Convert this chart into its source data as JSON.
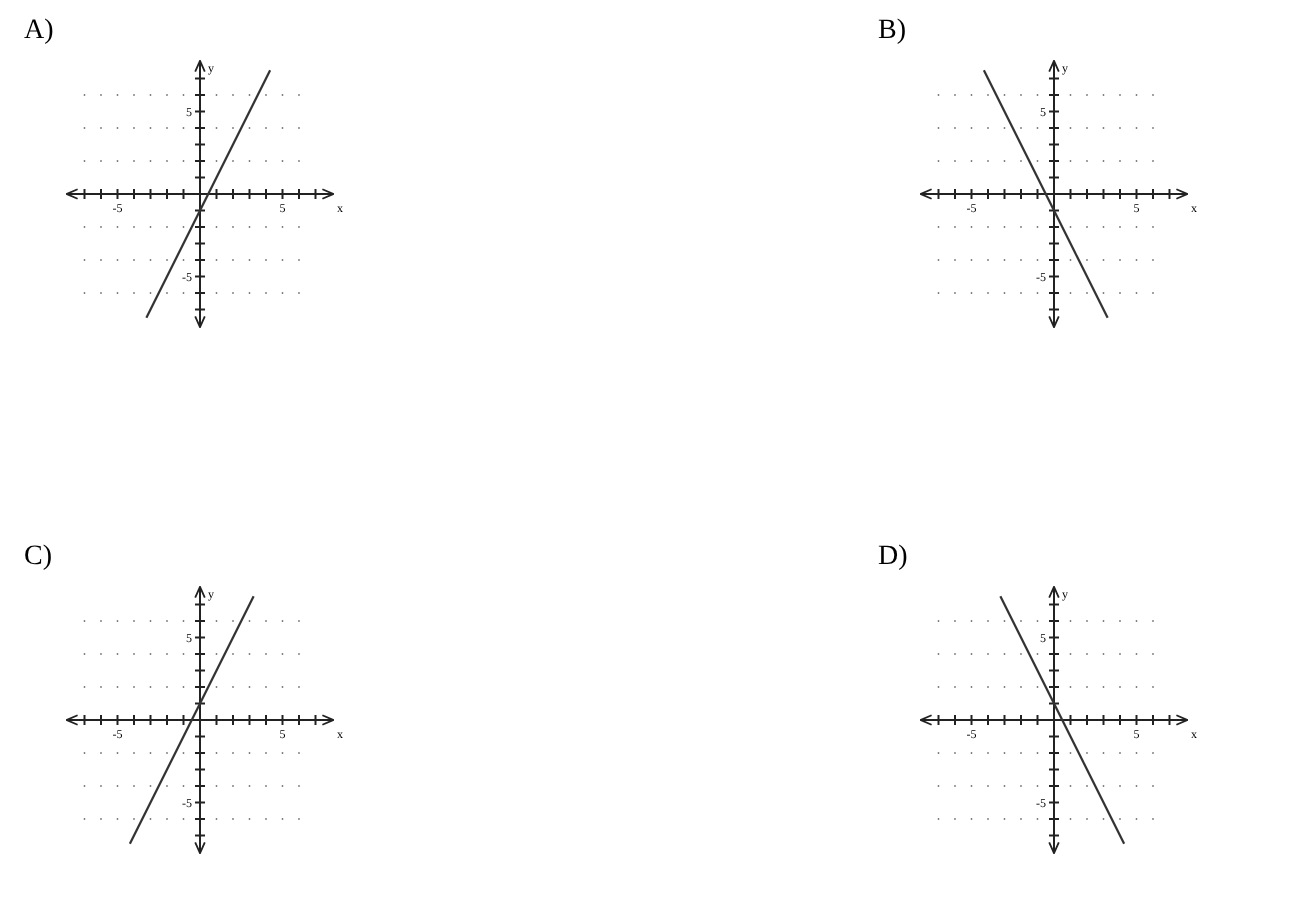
{
  "chart_data": [
    {
      "type": "line",
      "title": "A)",
      "xlabel": "x",
      "ylabel": "y",
      "xlim": [
        -8,
        8
      ],
      "ylim": [
        -8,
        8
      ],
      "grid": "y",
      "xticks": [
        {
          "value": -7,
          "label": null
        },
        {
          "value": -6,
          "label": null
        },
        {
          "value": -5,
          "label": "-5"
        },
        {
          "value": -4,
          "label": null
        },
        {
          "value": -3,
          "label": null
        },
        {
          "value": -2,
          "label": null
        },
        {
          "value": -1,
          "label": null
        },
        {
          "value": 0,
          "label": null
        },
        {
          "value": 1,
          "label": null
        },
        {
          "value": 2,
          "label": null
        },
        {
          "value": 3,
          "label": null
        },
        {
          "value": 4,
          "label": null
        },
        {
          "value": 5,
          "label": "5"
        },
        {
          "value": 6,
          "label": null
        },
        {
          "value": 7,
          "label": null
        }
      ],
      "yticks": [
        {
          "value": -7,
          "label": null
        },
        {
          "value": -6,
          "label": null
        },
        {
          "value": -5,
          "label": "-5"
        },
        {
          "value": -4,
          "label": null
        },
        {
          "value": -3,
          "label": null
        },
        {
          "value": -2,
          "label": null
        },
        {
          "value": -1,
          "label": null
        },
        {
          "value": 0,
          "label": null
        },
        {
          "value": 1,
          "label": null
        },
        {
          "value": 2,
          "label": null
        },
        {
          "value": 3,
          "label": null
        },
        {
          "value": 4,
          "label": null
        },
        {
          "value": 5,
          "label": "5"
        },
        {
          "value": 6,
          "label": null
        },
        {
          "value": 7,
          "label": null
        }
      ],
      "series": [
        {
          "color": "#333333",
          "x": [
            -3.25,
            4.25
          ],
          "values": [
            -7.5,
            7.5
          ]
        }
      ]
    },
    {
      "type": "line",
      "title": "B)",
      "xlabel": "x",
      "ylabel": "y",
      "xlim": [
        -8,
        8
      ],
      "ylim": [
        -8,
        8
      ],
      "grid": "y",
      "xticks": [
        {
          "value": -7,
          "label": null
        },
        {
          "value": -6,
          "label": null
        },
        {
          "value": -5,
          "label": "-5"
        },
        {
          "value": -4,
          "label": null
        },
        {
          "value": -3,
          "label": null
        },
        {
          "value": -2,
          "label": null
        },
        {
          "value": -1,
          "label": null
        },
        {
          "value": 0,
          "label": null
        },
        {
          "value": 1,
          "label": null
        },
        {
          "value": 2,
          "label": null
        },
        {
          "value": 3,
          "label": null
        },
        {
          "value": 4,
          "label": null
        },
        {
          "value": 5,
          "label": "5"
        },
        {
          "value": 6,
          "label": null
        },
        {
          "value": 7,
          "label": null
        }
      ],
      "yticks": [
        {
          "value": -7,
          "label": null
        },
        {
          "value": -6,
          "label": null
        },
        {
          "value": -5,
          "label": "-5"
        },
        {
          "value": -4,
          "label": null
        },
        {
          "value": -3,
          "label": null
        },
        {
          "value": -2,
          "label": null
        },
        {
          "value": -1,
          "label": null
        },
        {
          "value": 0,
          "label": null
        },
        {
          "value": 1,
          "label": null
        },
        {
          "value": 2,
          "label": null
        },
        {
          "value": 3,
          "label": null
        },
        {
          "value": 4,
          "label": null
        },
        {
          "value": 5,
          "label": "5"
        },
        {
          "value": 6,
          "label": null
        },
        {
          "value": 7,
          "label": null
        }
      ],
      "series": [
        {
          "color": "#333333",
          "x": [
            -4.25,
            3.25
          ],
          "values": [
            7.5,
            -7.5
          ]
        }
      ]
    },
    {
      "type": "line",
      "title": "C)",
      "xlabel": "x",
      "ylabel": "y",
      "xlim": [
        -8,
        8
      ],
      "ylim": [
        -8,
        8
      ],
      "grid": "y",
      "xticks": [
        {
          "value": -7,
          "label": null
        },
        {
          "value": -6,
          "label": null
        },
        {
          "value": -5,
          "label": "-5"
        },
        {
          "value": -4,
          "label": null
        },
        {
          "value": -3,
          "label": null
        },
        {
          "value": -2,
          "label": null
        },
        {
          "value": -1,
          "label": null
        },
        {
          "value": 0,
          "label": null
        },
        {
          "value": 1,
          "label": null
        },
        {
          "value": 2,
          "label": null
        },
        {
          "value": 3,
          "label": null
        },
        {
          "value": 4,
          "label": null
        },
        {
          "value": 5,
          "label": "5"
        },
        {
          "value": 6,
          "label": null
        },
        {
          "value": 7,
          "label": null
        }
      ],
      "yticks": [
        {
          "value": -7,
          "label": null
        },
        {
          "value": -6,
          "label": null
        },
        {
          "value": -5,
          "label": "-5"
        },
        {
          "value": -4,
          "label": null
        },
        {
          "value": -3,
          "label": null
        },
        {
          "value": -2,
          "label": null
        },
        {
          "value": -1,
          "label": null
        },
        {
          "value": 0,
          "label": null
        },
        {
          "value": 1,
          "label": null
        },
        {
          "value": 2,
          "label": null
        },
        {
          "value": 3,
          "label": null
        },
        {
          "value": 4,
          "label": null
        },
        {
          "value": 5,
          "label": "5"
        },
        {
          "value": 6,
          "label": null
        },
        {
          "value": 7,
          "label": null
        }
      ],
      "series": [
        {
          "color": "#333333",
          "x": [
            -4.25,
            3.25
          ],
          "values": [
            -7.5,
            7.5
          ]
        }
      ]
    },
    {
      "type": "line",
      "title": "D)",
      "xlabel": "x",
      "ylabel": "y",
      "xlim": [
        -8,
        8
      ],
      "ylim": [
        -8,
        8
      ],
      "grid": "y",
      "xticks": [
        {
          "value": -7,
          "label": null
        },
        {
          "value": -6,
          "label": null
        },
        {
          "value": -5,
          "label": "-5"
        },
        {
          "value": -4,
          "label": null
        },
        {
          "value": -3,
          "label": null
        },
        {
          "value": -2,
          "label": null
        },
        {
          "value": -1,
          "label": null
        },
        {
          "value": 0,
          "label": null
        },
        {
          "value": 1,
          "label": null
        },
        {
          "value": 2,
          "label": null
        },
        {
          "value": 3,
          "label": null
        },
        {
          "value": 4,
          "label": null
        },
        {
          "value": 5,
          "label": "5"
        },
        {
          "value": 6,
          "label": null
        },
        {
          "value": 7,
          "label": null
        }
      ],
      "yticks": [
        {
          "value": -7,
          "label": null
        },
        {
          "value": -6,
          "label": null
        },
        {
          "value": -5,
          "label": "-5"
        },
        {
          "value": -4,
          "label": null
        },
        {
          "value": -3,
          "label": null
        },
        {
          "value": -2,
          "label": null
        },
        {
          "value": -1,
          "label": null
        },
        {
          "value": 0,
          "label": null
        },
        {
          "value": 1,
          "label": null
        },
        {
          "value": 2,
          "label": null
        },
        {
          "value": 3,
          "label": null
        },
        {
          "value": 4,
          "label": null
        },
        {
          "value": 5,
          "label": "5"
        },
        {
          "value": 6,
          "label": null
        },
        {
          "value": 7,
          "label": null
        }
      ],
      "series": [
        {
          "color": "#333333",
          "x": [
            -3.25,
            4.25
          ],
          "values": [
            7.5,
            -7.5
          ]
        }
      ]
    }
  ]
}
